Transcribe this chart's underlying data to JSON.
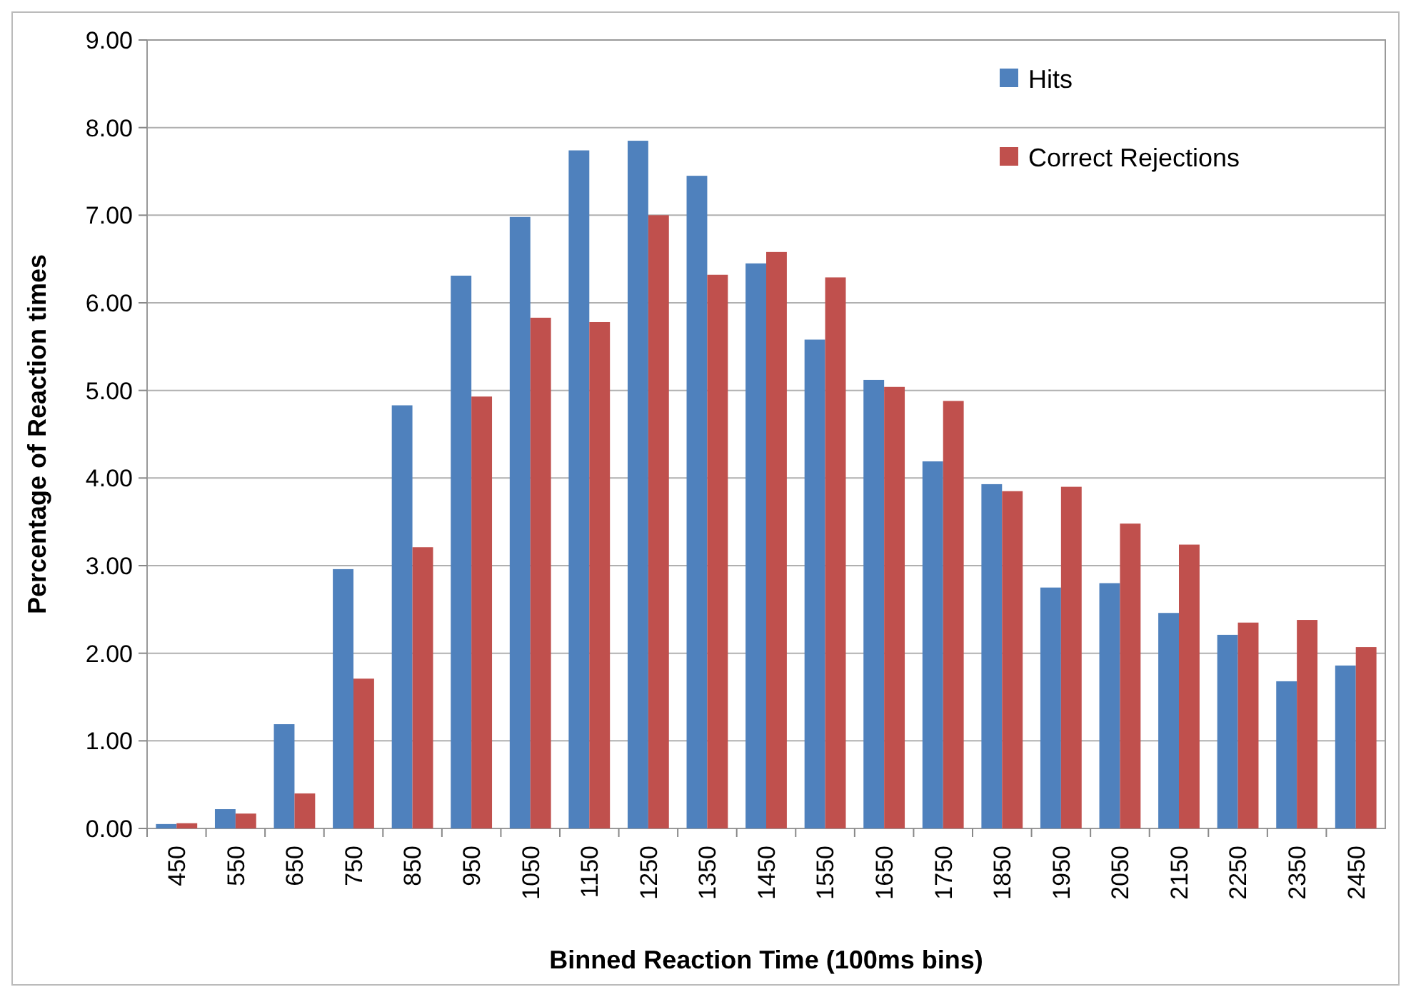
{
  "chart_data": {
    "type": "bar",
    "xlabel": "Binned Reaction Time (100ms bins)",
    "ylabel": "Percentage of Reaction times",
    "categories": [
      "450",
      "550",
      "650",
      "750",
      "850",
      "950",
      "1050",
      "1150",
      "1250",
      "1350",
      "1450",
      "1550",
      "1650",
      "1750",
      "1850",
      "1950",
      "2050",
      "2150",
      "2250",
      "2350",
      "2450"
    ],
    "series": [
      {
        "name": "Hits",
        "color": "#4f81bd",
        "values": [
          0.05,
          0.22,
          1.19,
          2.96,
          4.83,
          6.31,
          6.98,
          7.74,
          7.85,
          7.45,
          6.45,
          5.58,
          5.12,
          4.19,
          3.93,
          2.75,
          2.8,
          2.46,
          2.21,
          1.68,
          1.86
        ]
      },
      {
        "name": "Correct Rejections",
        "color": "#c0504d",
        "values": [
          0.06,
          0.17,
          0.4,
          1.71,
          3.21,
          4.93,
          5.83,
          5.78,
          7.0,
          6.32,
          6.58,
          6.29,
          5.04,
          4.88,
          3.85,
          3.9,
          3.48,
          3.24,
          2.35,
          2.38,
          2.07
        ]
      }
    ],
    "ylim": [
      0,
      9
    ],
    "yticks": [
      {
        "value": 0,
        "label": "0.00"
      },
      {
        "value": 1,
        "label": "1.00"
      },
      {
        "value": 2,
        "label": "2.00"
      },
      {
        "value": 3,
        "label": "3.00"
      },
      {
        "value": 4,
        "label": "4.00"
      },
      {
        "value": 5,
        "label": "5.00"
      },
      {
        "value": 6,
        "label": "6.00"
      },
      {
        "value": 7,
        "label": "7.00"
      },
      {
        "value": 8,
        "label": "8.00"
      },
      {
        "value": 9,
        "label": "9.00"
      }
    ],
    "grid": "y",
    "legend": "top right"
  }
}
